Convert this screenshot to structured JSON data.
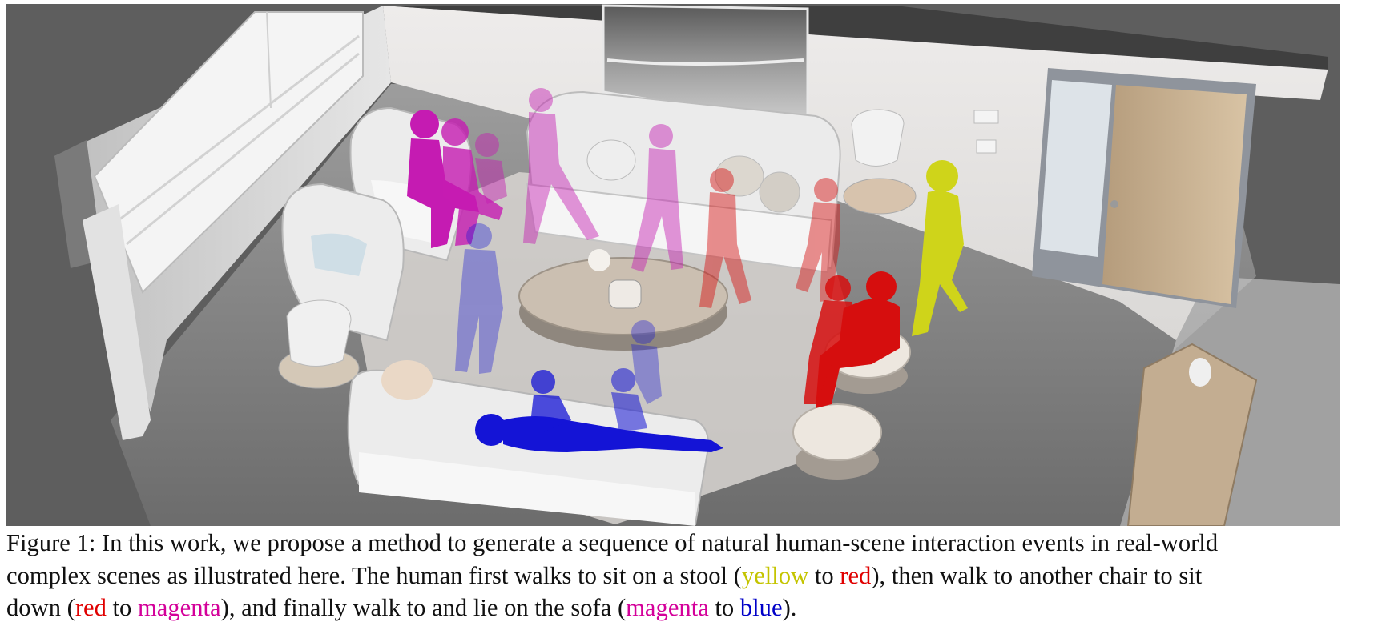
{
  "figure": {
    "colors": {
      "yellow": "#cfd41a",
      "red": "#d60e0e",
      "magenta": "#c51bb2",
      "blue": "#1414d6"
    }
  },
  "caption": {
    "line1": "Figure 1: In this work, we propose a method to generate a sequence of natural human-scene interaction events in real-world",
    "line2_a": "complex scenes as illustrated here.  The human first walks to sit on a stool (",
    "line2_yellow": "yellow",
    "line2_b": " to ",
    "line2_red": "red",
    "line2_c": "), then walk to another chair to sit",
    "line3_a": "down (",
    "line3_red": "red",
    "line3_b": " to ",
    "line3_magenta": "magenta",
    "line3_c": "), and finally walk to and lie on the sofa (",
    "line3_magenta2": "magenta",
    "line3_d": " to ",
    "line3_blue": "blue",
    "line3_e": ")."
  }
}
